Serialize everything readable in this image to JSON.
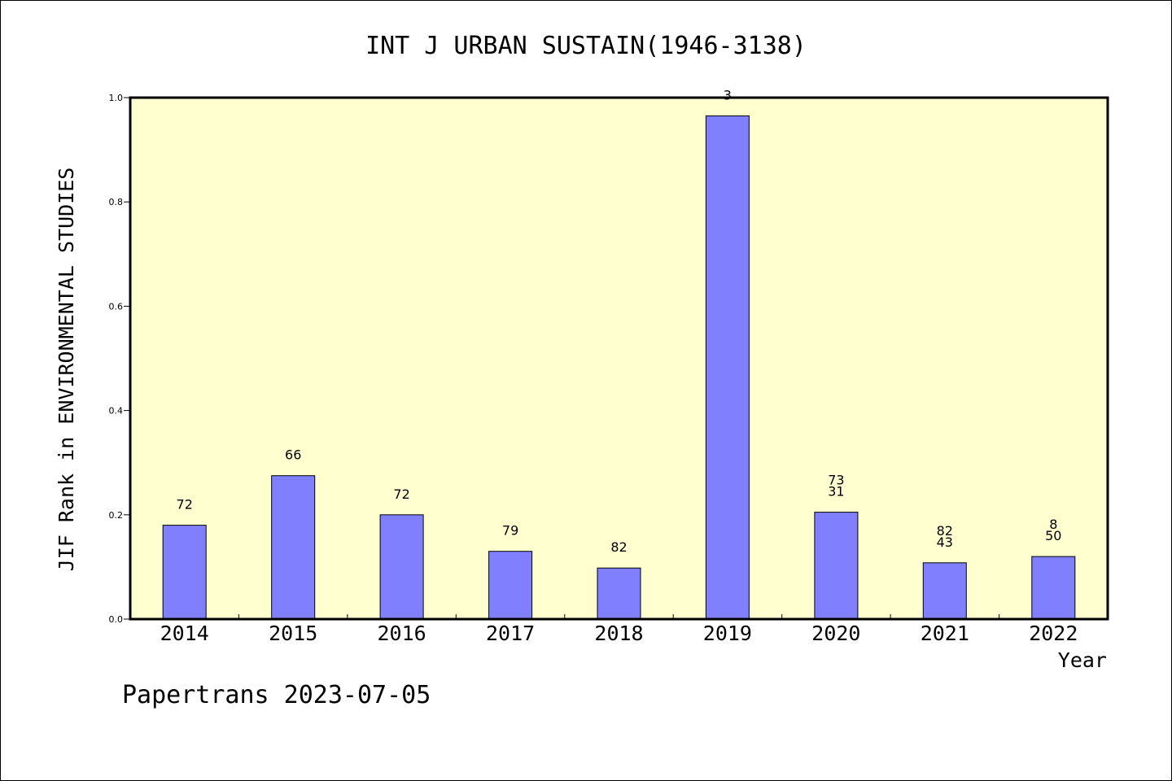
{
  "chart_data": {
    "type": "bar",
    "title": "INT J URBAN SUSTAIN(1946-3138)",
    "xlabel": "Year",
    "ylabel": "JIF Rank in ENVIRONMENTAL STUDIES",
    "categories": [
      "2014",
      "2015",
      "2016",
      "2017",
      "2018",
      "2019",
      "2020",
      "2021",
      "2022"
    ],
    "values": [
      0.18,
      0.275,
      0.2,
      0.13,
      0.098,
      0.965,
      0.205,
      0.108,
      0.12
    ],
    "annotations": [
      [
        "72"
      ],
      [
        "66"
      ],
      [
        "72"
      ],
      [
        "79"
      ],
      [
        "82"
      ],
      [
        "3"
      ],
      [
        "73",
        "31"
      ],
      [
        "82",
        "43"
      ],
      [
        "8",
        "50"
      ]
    ],
    "ylim": [
      0,
      1.0
    ],
    "yticks": [
      "0.0",
      "0.2",
      "0.4",
      "0.6",
      "0.8",
      "1.0"
    ],
    "grid": false,
    "bar_color": "#8080ff",
    "plot_background": "#ffffd0"
  },
  "footer": {
    "text": "Papertrans 2023-07-05"
  }
}
